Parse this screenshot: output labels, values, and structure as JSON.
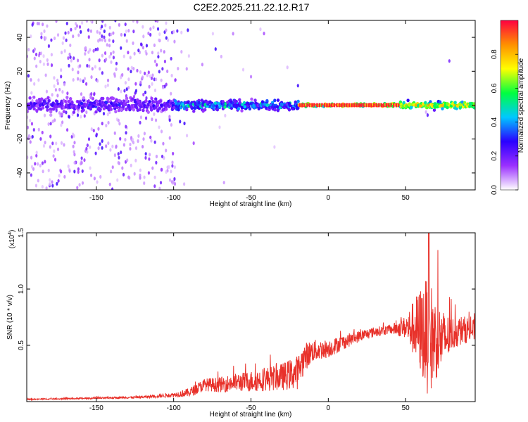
{
  "title": "C2E2.2025.211.22.12.R17",
  "chart_data": [
    {
      "type": "heatmap",
      "xlabel": "Height of straight line (km)",
      "ylabel": "Frequency (Hz)",
      "xlim": [
        -195,
        95
      ],
      "ylim": [
        -50,
        50
      ],
      "xticks": [
        -150,
        -100,
        -50,
        0,
        50
      ],
      "yticks": [
        -40,
        -20,
        0,
        20,
        40
      ],
      "colorbar": {
        "label": "Normalized spectral amplitude",
        "range": [
          0.0,
          1.0
        ],
        "ticks": [
          0.0,
          0.2,
          0.4,
          0.6,
          0.8
        ],
        "colormap": [
          "#ffffff",
          "#9b30ff",
          "#2a00ff",
          "#00c8ff",
          "#00ff40",
          "#ffff00",
          "#ff9000",
          "#ff0040"
        ]
      },
      "description_of_field": {
        "center_frequency": 0,
        "segments": [
          {
            "x_from": -195,
            "x_to": -100,
            "band_halfwidth_hz": 4,
            "peak_amplitude": 0.3,
            "scatter_noise": "dense, up to +/-50 Hz"
          },
          {
            "x_from": -100,
            "x_to": -20,
            "band_halfwidth_hz": 3,
            "peak_amplitude": 0.5,
            "scatter_noise": "sparse"
          },
          {
            "x_from": -20,
            "x_to": 45,
            "band_halfwidth_hz": 1,
            "peak_amplitude": 1.0,
            "scatter_noise": "none"
          },
          {
            "x_from": 45,
            "x_to": 95,
            "band_halfwidth_hz": 2,
            "peak_amplitude": 0.85,
            "scatter_noise": "sparse"
          }
        ]
      }
    },
    {
      "type": "line",
      "xlabel": "Height of straight line (km)",
      "ylabel": "SNR (10 * v/v)",
      "y_scale_note": "(x10",
      "y_scale_exp": "4",
      "xlim": [
        -195,
        95
      ],
      "ylim": [
        0,
        1.5
      ],
      "xticks": [
        -150,
        -100,
        -50,
        0,
        50
      ],
      "yticks": [
        0.5,
        1.0,
        1.5
      ],
      "series_color": "#e8312a",
      "envelope": {
        "x": [
          -195,
          -150,
          -120,
          -100,
          -90,
          -80,
          -70,
          -60,
          -50,
          -40,
          -30,
          -20,
          -15,
          -10,
          0,
          10,
          20,
          30,
          40,
          45,
          50,
          55,
          60,
          65,
          70,
          75,
          80,
          85,
          90,
          95
        ],
        "y": [
          0.02,
          0.03,
          0.04,
          0.06,
          0.08,
          0.15,
          0.15,
          0.17,
          0.18,
          0.2,
          0.22,
          0.26,
          0.4,
          0.45,
          0.47,
          0.53,
          0.58,
          0.62,
          0.64,
          0.65,
          0.66,
          0.65,
          0.63,
          0.58,
          0.55,
          0.55,
          0.6,
          0.63,
          0.64,
          0.63
        ]
      },
      "noise_amplitude": {
        "x": [
          -195,
          -120,
          -100,
          -85,
          -60,
          -30,
          -20,
          -10,
          0,
          20,
          40,
          50,
          55,
          60,
          65,
          70,
          80,
          95
        ],
        "y": [
          0.005,
          0.01,
          0.02,
          0.05,
          0.08,
          0.12,
          0.15,
          0.1,
          0.08,
          0.05,
          0.04,
          0.1,
          0.25,
          0.4,
          0.55,
          0.35,
          0.15,
          0.1
        ]
      },
      "peak_annotation": {
        "x": 65,
        "y": 1.5
      }
    }
  ]
}
